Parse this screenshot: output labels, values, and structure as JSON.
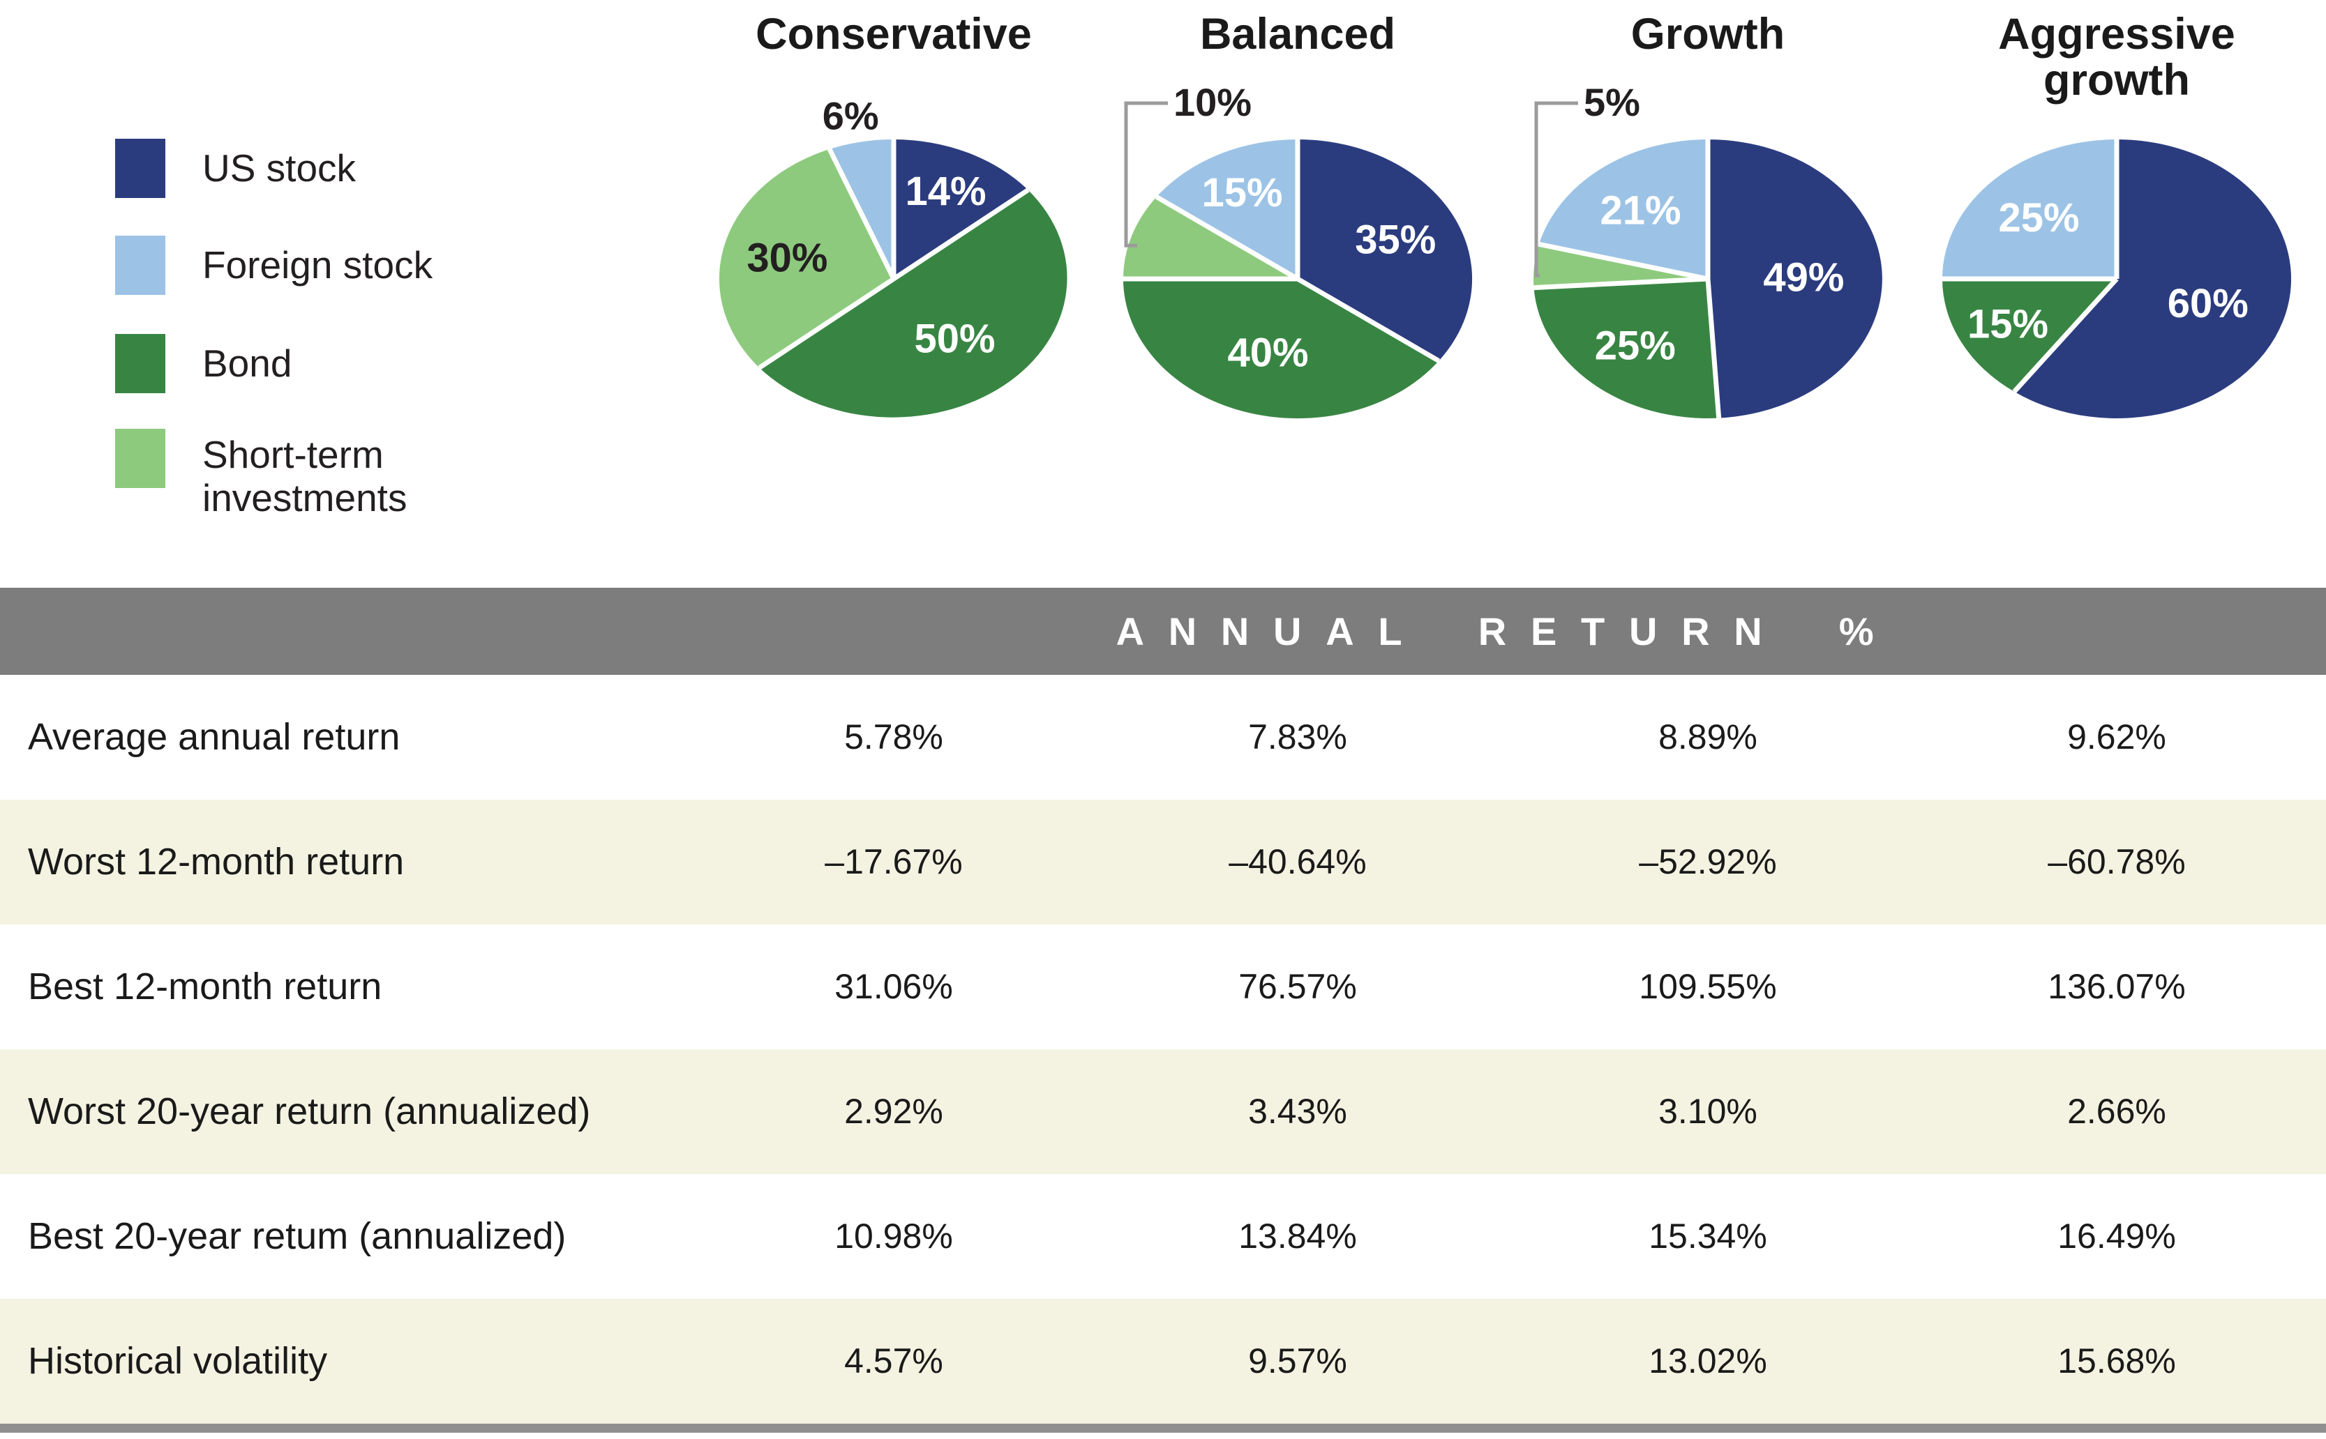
{
  "colors": {
    "us_stock": "#2b3c7e",
    "foreign_stock": "#9cc3e6",
    "bond": "#388543",
    "short_term": "#8dca7e",
    "header_band_bg": "#7d7d7d",
    "alt_row_bg": "#f4f3e2",
    "bottom_bar": "#8f8f8f",
    "callout_line": "#9b9b9b",
    "text_dark": "#231f20",
    "slice_label_light": "#ffffff"
  },
  "legend": {
    "items": [
      {
        "label": "US stock",
        "color": "#2b3c7e"
      },
      {
        "label": "Foreign stock",
        "color": "#9cc3e6"
      },
      {
        "label": "Bond",
        "color": "#388543"
      },
      {
        "label": "Short-term investments",
        "color": "#8dca7e"
      }
    ]
  },
  "chart_data": [
    {
      "type": "pie",
      "title": "Conservative",
      "unit": "%",
      "slices": [
        {
          "label": "US stock",
          "value": 14,
          "display": "14%",
          "color": "#2b3c7e",
          "label_color": "#ffffff",
          "placement": "inside"
        },
        {
          "label": "Bond",
          "value": 50,
          "display": "50%",
          "color": "#388543",
          "label_color": "#ffffff",
          "placement": "inside"
        },
        {
          "label": "Short-term investments",
          "value": 30,
          "display": "30%",
          "color": "#8dca7e",
          "label_color": "#231f20",
          "placement": "inside"
        },
        {
          "label": "Foreign stock",
          "value": 6,
          "display": "6%",
          "color": "#9cc3e6",
          "placement": "outside"
        }
      ]
    },
    {
      "type": "pie",
      "title": "Balanced",
      "unit": "%",
      "slices": [
        {
          "label": "US stock",
          "value": 35,
          "display": "35%",
          "color": "#2b3c7e",
          "label_color": "#ffffff",
          "placement": "inside"
        },
        {
          "label": "Bond",
          "value": 40,
          "display": "40%",
          "color": "#388543",
          "label_color": "#ffffff",
          "placement": "inside"
        },
        {
          "label": "Short-term investments",
          "value": 10,
          "display": "10%",
          "color": "#8dca7e",
          "placement": "callout"
        },
        {
          "label": "Foreign stock",
          "value": 15,
          "display": "15%",
          "color": "#9cc3e6",
          "label_color": "#ffffff",
          "placement": "inside"
        }
      ]
    },
    {
      "type": "pie",
      "title": "Growth",
      "unit": "%",
      "slices": [
        {
          "label": "US stock",
          "value": 49,
          "display": "49%",
          "color": "#2b3c7e",
          "label_color": "#ffffff",
          "placement": "inside"
        },
        {
          "label": "Bond",
          "value": 25,
          "display": "25%",
          "color": "#388543",
          "label_color": "#ffffff",
          "placement": "inside"
        },
        {
          "label": "Short-term investments",
          "value": 5,
          "display": "5%",
          "color": "#8dca7e",
          "placement": "callout"
        },
        {
          "label": "Foreign stock",
          "value": 21,
          "display": "21%",
          "color": "#9cc3e6",
          "label_color": "#ffffff",
          "placement": "inside"
        }
      ]
    },
    {
      "type": "pie",
      "title": "Aggressive growth",
      "unit": "%",
      "slices": [
        {
          "label": "US stock",
          "value": 60,
          "display": "60%",
          "color": "#2b3c7e",
          "label_color": "#ffffff",
          "placement": "inside"
        },
        {
          "label": "Bond",
          "value": 15,
          "display": "15%",
          "color": "#388543",
          "label_color": "#ffffff",
          "placement": "inside"
        },
        {
          "label": "Foreign stock",
          "value": 25,
          "display": "25%",
          "color": "#9cc3e6",
          "label_color": "#ffffff",
          "placement": "inside"
        }
      ]
    }
  ],
  "table": {
    "header": "ANNUAL RETURN %",
    "columns": [
      "Conservative",
      "Balanced",
      "Growth",
      "Aggressive growth"
    ],
    "rows": [
      {
        "label": "Average annual return",
        "values": [
          "5.78%",
          "7.83%",
          "8.89%",
          "9.62%"
        ]
      },
      {
        "label": "Worst 12-month return",
        "values": [
          "–17.67%",
          "–40.64%",
          "–52.92%",
          "–60.78%"
        ]
      },
      {
        "label": "Best 12-month return",
        "values": [
          "31.06%",
          "76.57%",
          "109.55%",
          "136.07%"
        ]
      },
      {
        "label": "Worst 20-year return (annualized)",
        "values": [
          "2.92%",
          "3.43%",
          "3.10%",
          "2.66%"
        ]
      },
      {
        "label": "Best 20-year retum (annualized)",
        "values": [
          "10.98%",
          "13.84%",
          "15.34%",
          "16.49%"
        ]
      },
      {
        "label": "Historical volatility",
        "values": [
          "4.57%",
          "9.57%",
          "13.02%",
          "15.68%"
        ]
      }
    ]
  }
}
